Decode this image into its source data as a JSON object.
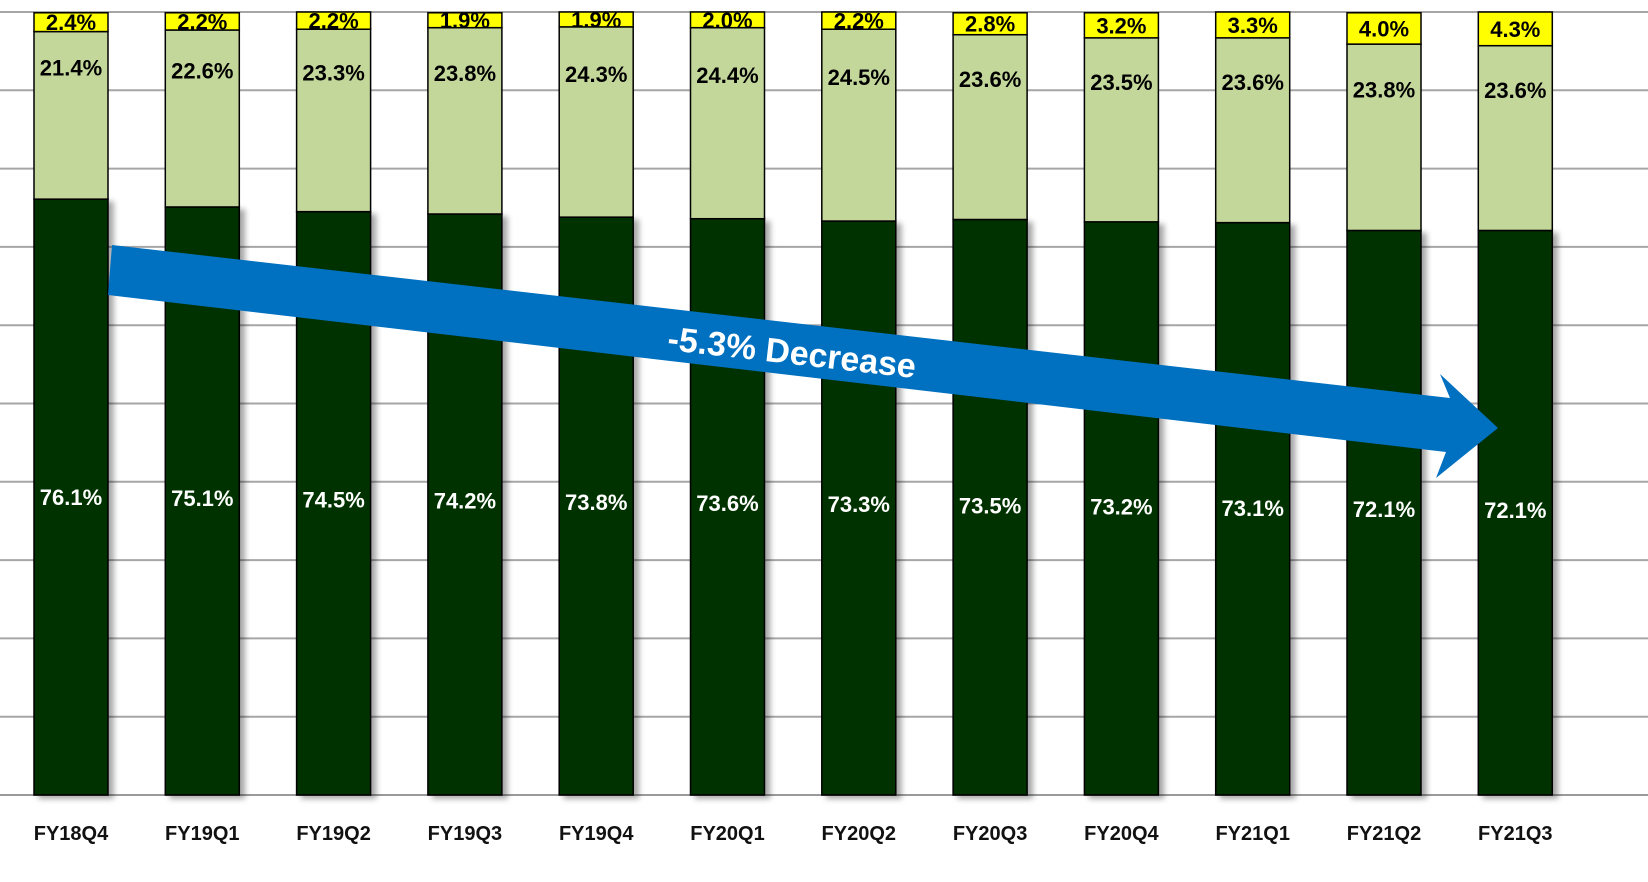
{
  "chart_data": {
    "type": "bar",
    "stacked": true,
    "categories": [
      "FY18Q4",
      "FY19Q1",
      "FY19Q2",
      "FY19Q3",
      "FY19Q4",
      "FY20Q1",
      "FY20Q2",
      "FY20Q3",
      "FY20Q4",
      "FY21Q1",
      "FY21Q2",
      "FY21Q3"
    ],
    "series": [
      {
        "values": [
          76.1,
          75.1,
          74.5,
          74.2,
          73.8,
          73.6,
          73.3,
          73.5,
          73.2,
          73.1,
          72.1,
          72.1
        ],
        "labels": [
          "76.1%",
          "75.1%",
          "74.5%",
          "74.2%",
          "73.8%",
          "73.6%",
          "73.3%",
          "73.5%",
          "73.2%",
          "73.1%",
          "72.1%",
          "72.1%"
        ]
      },
      {
        "values": [
          21.4,
          22.6,
          23.3,
          23.8,
          24.3,
          24.4,
          24.5,
          23.6,
          23.5,
          23.6,
          23.8,
          23.6
        ],
        "labels": [
          "21.4%",
          "22.6%",
          "23.3%",
          "23.8%",
          "24.3%",
          "24.4%",
          "24.5%",
          "23.6%",
          "23.5%",
          "23.6%",
          "23.8%",
          "23.6%"
        ]
      },
      {
        "values": [
          2.4,
          2.2,
          2.2,
          1.9,
          1.9,
          2.0,
          2.2,
          2.8,
          3.2,
          3.3,
          4.0,
          4.3
        ],
        "labels": [
          "2.4%",
          "2.2%",
          "2.2%",
          "1.9%",
          "1.9%",
          "2.0%",
          "2.2%",
          "2.8%",
          "3.2%",
          "3.3%",
          "4.0%",
          "4.3%"
        ]
      }
    ],
    "colors": [
      "#003300",
      "#c4d79b",
      "#ffff00"
    ],
    "label_colors": [
      "#ffffff",
      "#000000",
      "#000000"
    ],
    "ylim": [
      0,
      100
    ],
    "grid": true,
    "legend": "none",
    "annotation": {
      "text": "-5.3% Decrease",
      "color": "#0070c0"
    }
  }
}
